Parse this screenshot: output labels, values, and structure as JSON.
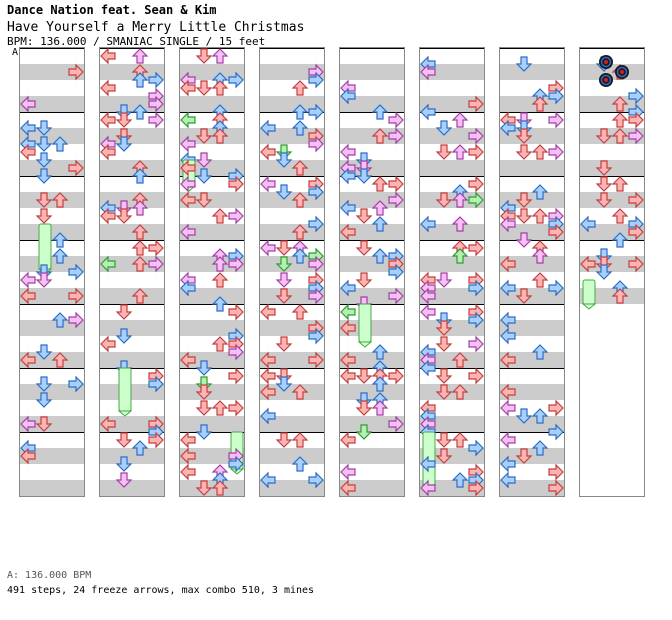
{
  "header": {
    "artist": "Dance Nation feat. Sean & Kim",
    "title": "Have Yourself a Merry Little Christmas",
    "meta": "BPM: 136.000 / SMANIAC SINGLE / 15 feet",
    "bpm_marker": "A"
  },
  "footer": {
    "bpm_legend": "A: 136.000 BPM",
    "stats": "491 steps, 24 freeze arrows, max combo 510, 3 mines"
  },
  "colors": {
    "background": "#ffffff",
    "stripe": "#cccccc",
    "measure_line": "#000000",
    "red_fill": "#ffb4b4",
    "red_stroke": "#c04040",
    "blue_fill": "#a8d0ff",
    "blue_stroke": "#2e6cc0",
    "pink_fill": "#f6c0f6",
    "pink_stroke": "#a040a0",
    "green_fill": "#b4f0b4",
    "green_stroke": "#2e9a2e",
    "freeze_fill": "#ccffcc",
    "freeze_stroke": "#44aa44",
    "mine_outer": "#1a1a1a",
    "mine_ring": "#3366cc",
    "mine_core": "#cc2222"
  },
  "chart_data": {
    "type": "step-chart",
    "columns": 8,
    "measures_per_column": 7,
    "measures_in_column_8": 4,
    "lanes": [
      "left",
      "down",
      "up",
      "right"
    ],
    "steps": 491,
    "freeze_arrows": 24,
    "max_combo": 510,
    "mines": 3,
    "bpm": 136.0
  }
}
